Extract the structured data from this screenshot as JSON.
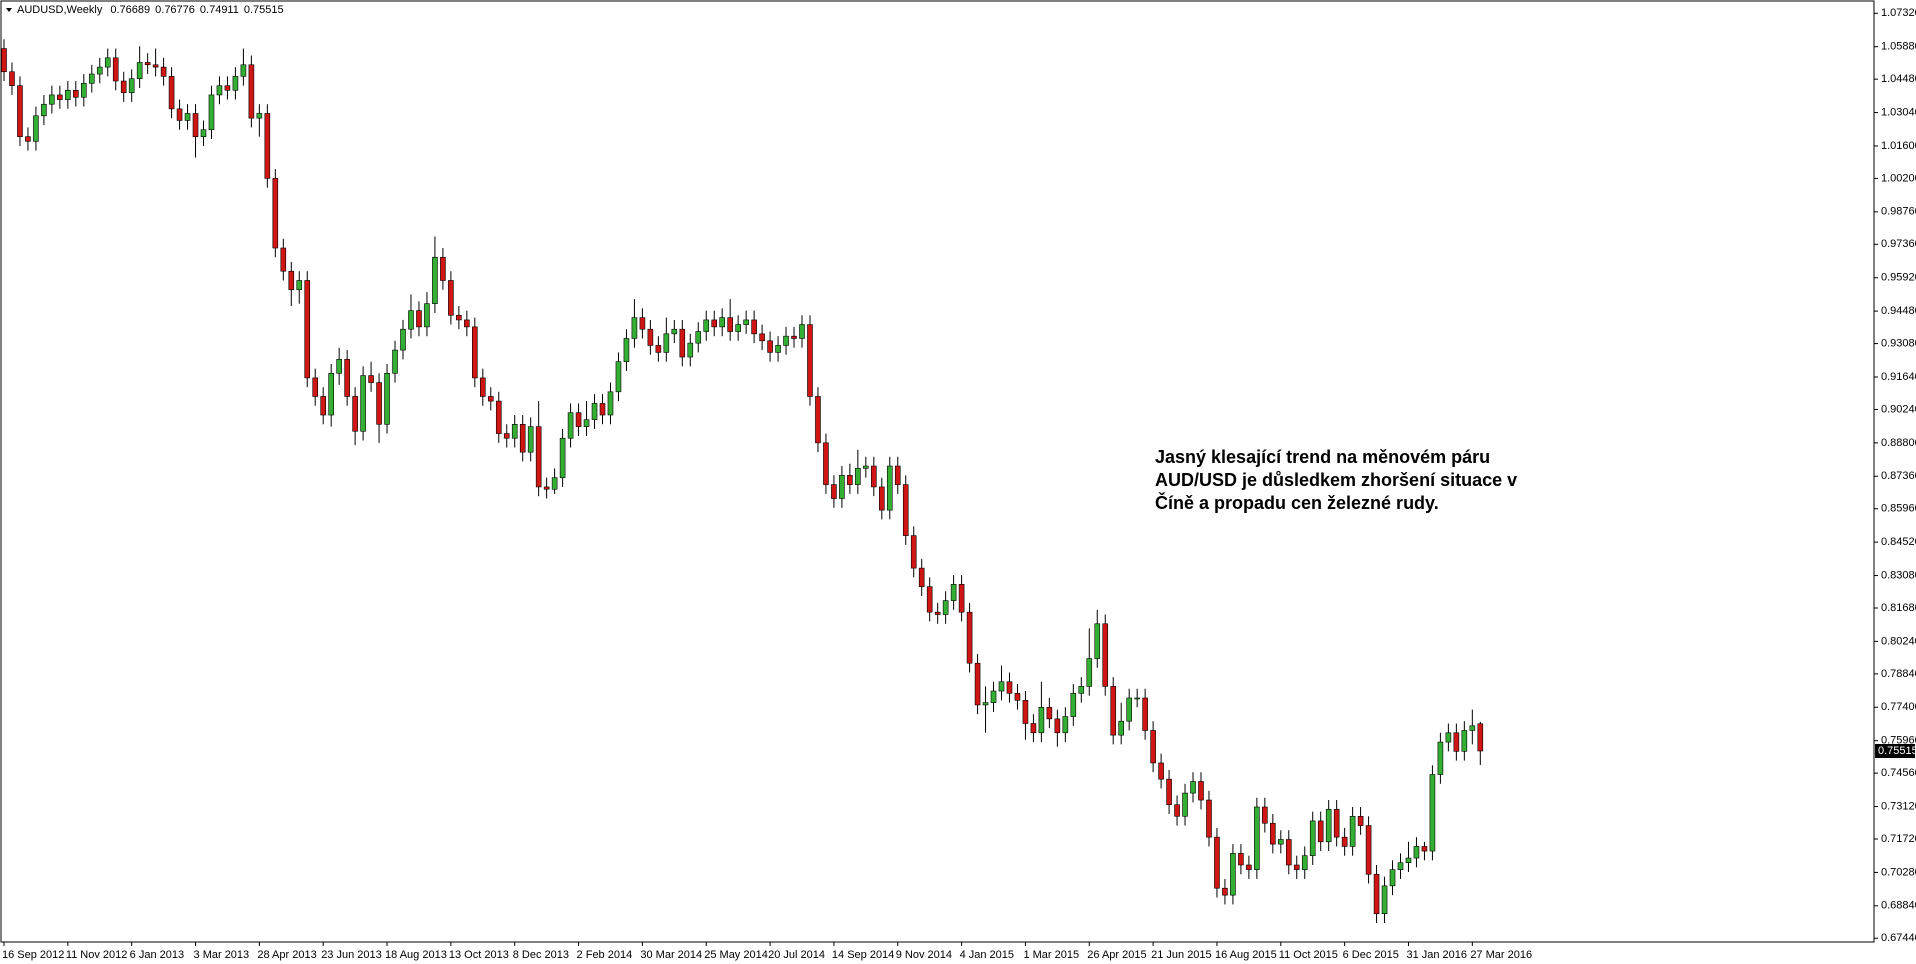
{
  "chart_data": {
    "type": "candlestick",
    "symbol": "AUDUSD,Weekly",
    "annotation": "Jasný klesající trend na měnovém páru AUD/USD je důsledkem zhoršení situace v Číně a propadu cen železné rudy.",
    "up_color": "#33b033",
    "down_color": "#d01515",
    "wick_color": "#000000",
    "ylim": [
      0.6728,
      1.0785
    ],
    "yticks": [
      {
        "value": 1.0732,
        "label": "1.07320"
      },
      {
        "value": 1.0588,
        "label": "1.05880"
      },
      {
        "value": 1.0448,
        "label": "1.04480"
      },
      {
        "value": 1.0304,
        "label": "1.03040"
      },
      {
        "value": 1.016,
        "label": "1.01600"
      },
      {
        "value": 1.002,
        "label": "1.00200"
      },
      {
        "value": 0.9876,
        "label": "0.98760"
      },
      {
        "value": 0.9736,
        "label": "0.97360"
      },
      {
        "value": 0.9592,
        "label": "0.95920"
      },
      {
        "value": 0.9448,
        "label": "0.94480"
      },
      {
        "value": 0.9308,
        "label": "0.93080"
      },
      {
        "value": 0.9164,
        "label": "0.91640"
      },
      {
        "value": 0.9024,
        "label": "0.90240"
      },
      {
        "value": 0.888,
        "label": "0.88800"
      },
      {
        "value": 0.8736,
        "label": "0.87360"
      },
      {
        "value": 0.8596,
        "label": "0.85960"
      },
      {
        "value": 0.8452,
        "label": "0.84520"
      },
      {
        "value": 0.8308,
        "label": "0.83080"
      },
      {
        "value": 0.8168,
        "label": "0.81680"
      },
      {
        "value": 0.8024,
        "label": "0.80240"
      },
      {
        "value": 0.7884,
        "label": "0.78840"
      },
      {
        "value": 0.774,
        "label": "0.77400"
      },
      {
        "value": 0.7596,
        "label": "0.75960"
      },
      {
        "value": 0.7456,
        "label": "0.74560"
      },
      {
        "value": 0.7312,
        "label": "0.73120"
      },
      {
        "value": 0.7172,
        "label": "0.71720"
      },
      {
        "value": 0.7028,
        "label": "0.70280"
      },
      {
        "value": 0.6884,
        "label": "0.68840"
      },
      {
        "value": 0.6744,
        "label": "0.67440"
      }
    ],
    "categories": [
      "16 Sep 2012",
      null,
      null,
      null,
      null,
      null,
      null,
      null,
      "11 Nov 2012",
      null,
      null,
      null,
      null,
      null,
      null,
      null,
      "6 Jan 2013",
      null,
      null,
      null,
      null,
      null,
      null,
      null,
      "3 Mar 2013",
      null,
      null,
      null,
      null,
      null,
      null,
      null,
      "28 Apr 2013",
      null,
      null,
      null,
      null,
      null,
      null,
      null,
      "23 Jun 2013",
      null,
      null,
      null,
      null,
      null,
      null,
      null,
      "18 Aug 2013",
      null,
      null,
      null,
      null,
      null,
      null,
      null,
      "13 Oct 2013",
      null,
      null,
      null,
      null,
      null,
      null,
      null,
      "8 Dec 2013",
      null,
      null,
      null,
      null,
      null,
      null,
      null,
      "2 Feb 2014",
      null,
      null,
      null,
      null,
      null,
      null,
      null,
      "30 Mar 2014",
      null,
      null,
      null,
      null,
      null,
      null,
      null,
      "25 May 2014",
      null,
      null,
      null,
      null,
      null,
      null,
      null,
      "20 Jul 2014",
      null,
      null,
      null,
      null,
      null,
      null,
      null,
      "14 Sep 2014",
      null,
      null,
      null,
      null,
      null,
      null,
      null,
      "9 Nov 2014",
      null,
      null,
      null,
      null,
      null,
      null,
      null,
      "4 Jan 2015",
      null,
      null,
      null,
      null,
      null,
      null,
      null,
      "1 Mar 2015",
      null,
      null,
      null,
      null,
      null,
      null,
      null,
      "26 Apr 2015",
      null,
      null,
      null,
      null,
      null,
      null,
      null,
      "21 Jun 2015",
      null,
      null,
      null,
      null,
      null,
      null,
      null,
      "16 Aug 2015",
      null,
      null,
      null,
      null,
      null,
      null,
      null,
      "11 Oct 2015",
      null,
      null,
      null,
      null,
      null,
      null,
      null,
      "6 Dec 2015",
      null,
      null,
      null,
      null,
      null,
      null,
      null,
      "31 Jan 2016",
      null,
      null,
      null,
      null,
      null,
      null,
      null,
      "27 Mar 2016",
      null
    ],
    "open": [
      1.058,
      1.048,
      1.042,
      1.02,
      1.018,
      1.029,
      1.034,
      1.038,
      1.036,
      1.04,
      1.037,
      1.043,
      1.047,
      1.05,
      1.054,
      1.044,
      1.039,
      1.045,
      1.052,
      1.051,
      1.05,
      1.046,
      1.032,
      1.027,
      1.03,
      1.02,
      1.023,
      1.038,
      1.042,
      1.04,
      1.046,
      1.051,
      1.028,
      1.03,
      1.002,
      0.972,
      0.962,
      0.954,
      0.958,
      0.916,
      0.908,
      0.9,
      0.918,
      0.924,
      0.908,
      0.893,
      0.917,
      0.914,
      0.896,
      0.918,
      0.928,
      0.937,
      0.945,
      0.938,
      0.948,
      0.968,
      0.958,
      0.943,
      0.941,
      0.938,
      0.916,
      0.908,
      0.906,
      0.892,
      0.89,
      0.896,
      0.884,
      0.895,
      0.869,
      0.868,
      0.873,
      0.89,
      0.901,
      0.895,
      0.898,
      0.905,
      0.9,
      0.91,
      0.923,
      0.933,
      0.942,
      0.937,
      0.93,
      0.927,
      0.935,
      0.937,
      0.925,
      0.931,
      0.936,
      0.941,
      0.938,
      0.942,
      0.936,
      0.939,
      0.941,
      0.935,
      0.932,
      0.927,
      0.93,
      0.934,
      0.933,
      0.939,
      0.908,
      0.888,
      0.87,
      0.864,
      0.874,
      0.87,
      0.877,
      0.878,
      0.869,
      0.859,
      0.878,
      0.87,
      0.848,
      0.834,
      0.826,
      0.815,
      0.814,
      0.82,
      0.827,
      0.815,
      0.793,
      0.775,
      0.776,
      0.781,
      0.785,
      0.78,
      0.777,
      0.767,
      0.763,
      0.774,
      0.769,
      0.763,
      0.77,
      0.78,
      0.783,
      0.795,
      0.81,
      0.783,
      0.762,
      0.768,
      0.778,
      0.778,
      0.764,
      0.75,
      0.743,
      0.732,
      0.727,
      0.737,
      0.742,
      0.734,
      0.718,
      0.696,
      0.693,
      0.711,
      0.706,
      0.704,
      0.731,
      0.724,
      0.715,
      0.717,
      0.706,
      0.704,
      0.71,
      0.725,
      0.716,
      0.73,
      0.718,
      0.714,
      0.727,
      0.723,
      0.702,
      0.685,
      0.697,
      0.704,
      0.707,
      0.709,
      0.714,
      0.712,
      0.745,
      0.759,
      0.763,
      0.755,
      0.764,
      0.76689
    ],
    "high": [
      1.062,
      1.052,
      1.046,
      1.024,
      1.033,
      1.038,
      1.042,
      1.042,
      1.044,
      1.044,
      1.047,
      1.051,
      1.054,
      1.058,
      1.058,
      1.048,
      1.049,
      1.059,
      1.056,
      1.058,
      1.054,
      1.05,
      1.036,
      1.034,
      1.034,
      1.027,
      1.042,
      1.046,
      1.046,
      1.05,
      1.058,
      1.055,
      1.034,
      1.034,
      1.006,
      0.976,
      0.966,
      0.962,
      0.962,
      0.92,
      0.912,
      0.922,
      0.929,
      0.928,
      0.912,
      0.921,
      0.923,
      0.918,
      0.922,
      0.932,
      0.941,
      0.952,
      0.949,
      0.953,
      0.977,
      0.972,
      0.962,
      0.947,
      0.945,
      0.942,
      0.92,
      0.912,
      0.91,
      0.896,
      0.9,
      0.9,
      0.899,
      0.906,
      0.873,
      0.877,
      0.894,
      0.905,
      0.905,
      0.906,
      0.909,
      0.909,
      0.914,
      0.927,
      0.937,
      0.95,
      0.946,
      0.941,
      0.934,
      0.942,
      0.941,
      0.941,
      0.935,
      0.94,
      0.945,
      0.945,
      0.946,
      0.95,
      0.943,
      0.945,
      0.945,
      0.939,
      0.936,
      0.934,
      0.938,
      0.938,
      0.943,
      0.943,
      0.912,
      0.892,
      0.874,
      0.878,
      0.879,
      0.885,
      0.882,
      0.882,
      0.873,
      0.882,
      0.882,
      0.874,
      0.852,
      0.838,
      0.83,
      0.819,
      0.824,
      0.831,
      0.831,
      0.819,
      0.797,
      0.783,
      0.785,
      0.792,
      0.789,
      0.784,
      0.781,
      0.771,
      0.785,
      0.778,
      0.773,
      0.774,
      0.784,
      0.787,
      0.808,
      0.816,
      0.814,
      0.787,
      0.776,
      0.782,
      0.782,
      0.782,
      0.768,
      0.754,
      0.747,
      0.736,
      0.741,
      0.746,
      0.746,
      0.738,
      0.722,
      0.7,
      0.715,
      0.715,
      0.71,
      0.735,
      0.735,
      0.728,
      0.721,
      0.721,
      0.71,
      0.714,
      0.729,
      0.729,
      0.734,
      0.734,
      0.722,
      0.731,
      0.731,
      0.727,
      0.706,
      0.701,
      0.708,
      0.711,
      0.716,
      0.718,
      0.716,
      0.749,
      0.763,
      0.767,
      0.767,
      0.768,
      0.773,
      0.76776
    ],
    "low": [
      1.044,
      1.038,
      1.016,
      1.014,
      1.014,
      1.025,
      1.03,
      1.032,
      1.032,
      1.033,
      1.033,
      1.039,
      1.043,
      1.046,
      1.04,
      1.035,
      1.035,
      1.041,
      1.047,
      1.046,
      1.042,
      1.028,
      1.023,
      1.023,
      1.011,
      1.016,
      1.019,
      1.034,
      1.036,
      1.036,
      1.042,
      1.024,
      1.02,
      0.998,
      0.968,
      0.958,
      0.947,
      0.948,
      0.912,
      0.904,
      0.896,
      0.895,
      0.913,
      0.904,
      0.887,
      0.889,
      0.91,
      0.888,
      0.892,
      0.914,
      0.924,
      0.933,
      0.934,
      0.934,
      0.944,
      0.954,
      0.939,
      0.937,
      0.934,
      0.912,
      0.904,
      0.902,
      0.888,
      0.886,
      0.886,
      0.88,
      0.88,
      0.865,
      0.864,
      0.866,
      0.869,
      0.886,
      0.891,
      0.891,
      0.894,
      0.896,
      0.896,
      0.906,
      0.919,
      0.929,
      0.933,
      0.926,
      0.923,
      0.923,
      0.931,
      0.921,
      0.921,
      0.927,
      0.932,
      0.934,
      0.934,
      0.932,
      0.932,
      0.935,
      0.931,
      0.928,
      0.923,
      0.923,
      0.926,
      0.929,
      0.929,
      0.904,
      0.884,
      0.866,
      0.86,
      0.86,
      0.866,
      0.866,
      0.873,
      0.865,
      0.855,
      0.855,
      0.866,
      0.844,
      0.83,
      0.822,
      0.811,
      0.81,
      0.81,
      0.816,
      0.811,
      0.789,
      0.771,
      0.763,
      0.772,
      0.777,
      0.776,
      0.773,
      0.76,
      0.759,
      0.759,
      0.765,
      0.757,
      0.759,
      0.766,
      0.776,
      0.779,
      0.791,
      0.779,
      0.758,
      0.758,
      0.764,
      0.774,
      0.76,
      0.746,
      0.739,
      0.728,
      0.723,
      0.723,
      0.733,
      0.73,
      0.714,
      0.692,
      0.689,
      0.689,
      0.702,
      0.7,
      0.7,
      0.72,
      0.711,
      0.711,
      0.702,
      0.7,
      0.7,
      0.706,
      0.712,
      0.712,
      0.714,
      0.71,
      0.71,
      0.719,
      0.698,
      0.681,
      0.681,
      0.693,
      0.7,
      0.703,
      0.705,
      0.708,
      0.708,
      0.741,
      0.755,
      0.751,
      0.751,
      0.758,
      0.74911
    ],
    "close": [
      1.048,
      1.042,
      1.02,
      1.018,
      1.029,
      1.034,
      1.038,
      1.036,
      1.04,
      1.037,
      1.043,
      1.047,
      1.05,
      1.054,
      1.044,
      1.039,
      1.045,
      1.052,
      1.051,
      1.05,
      1.046,
      1.032,
      1.027,
      1.03,
      1.02,
      1.023,
      1.038,
      1.042,
      1.04,
      1.046,
      1.051,
      1.028,
      1.03,
      1.002,
      0.972,
      0.962,
      0.954,
      0.958,
      0.916,
      0.908,
      0.9,
      0.918,
      0.924,
      0.908,
      0.893,
      0.917,
      0.914,
      0.896,
      0.918,
      0.928,
      0.937,
      0.945,
      0.938,
      0.948,
      0.968,
      0.958,
      0.943,
      0.941,
      0.938,
      0.916,
      0.908,
      0.906,
      0.892,
      0.89,
      0.896,
      0.884,
      0.895,
      0.869,
      0.868,
      0.873,
      0.89,
      0.901,
      0.895,
      0.898,
      0.905,
      0.9,
      0.91,
      0.923,
      0.933,
      0.942,
      0.937,
      0.93,
      0.927,
      0.935,
      0.937,
      0.925,
      0.931,
      0.936,
      0.941,
      0.938,
      0.942,
      0.936,
      0.939,
      0.941,
      0.935,
      0.932,
      0.927,
      0.93,
      0.934,
      0.933,
      0.939,
      0.908,
      0.888,
      0.87,
      0.864,
      0.874,
      0.87,
      0.877,
      0.878,
      0.869,
      0.859,
      0.878,
      0.87,
      0.848,
      0.834,
      0.826,
      0.815,
      0.814,
      0.82,
      0.827,
      0.815,
      0.793,
      0.775,
      0.776,
      0.781,
      0.785,
      0.78,
      0.777,
      0.767,
      0.763,
      0.774,
      0.769,
      0.763,
      0.77,
      0.78,
      0.783,
      0.795,
      0.81,
      0.783,
      0.762,
      0.768,
      0.778,
      0.778,
      0.764,
      0.75,
      0.743,
      0.732,
      0.727,
      0.737,
      0.742,
      0.734,
      0.718,
      0.696,
      0.693,
      0.711,
      0.706,
      0.704,
      0.731,
      0.724,
      0.715,
      0.717,
      0.706,
      0.704,
      0.71,
      0.725,
      0.716,
      0.73,
      0.718,
      0.714,
      0.727,
      0.723,
      0.702,
      0.685,
      0.697,
      0.704,
      0.707,
      0.709,
      0.714,
      0.712,
      0.745,
      0.759,
      0.763,
      0.755,
      0.764,
      0.766,
      0.75515
    ]
  }
}
